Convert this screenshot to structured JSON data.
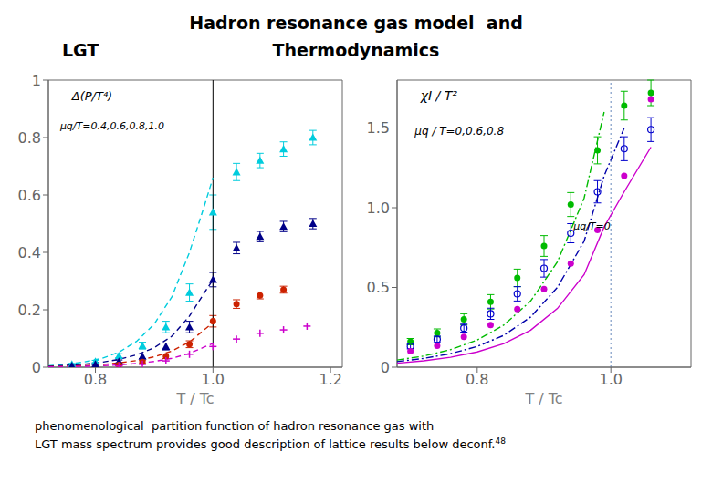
{
  "title": [
    "Hadron resonance gas model  and",
    "LGT",
    "Thermodynamics"
  ],
  "subtitle": [
    "phenomenological  partition function of hadron resonance gas with",
    "LGT mass spectrum provides good description of lattice results below deconf."
  ],
  "annotations": [
    "48"
  ],
  "chart_data": [
    {
      "type": "line",
      "x_label": "T / Tc",
      "annotations": [
        "Δ(P/T⁴)",
        "μq/T=0.4,0.6,0.8,1.0"
      ],
      "xlim": [
        0.72,
        1.22
      ],
      "ylim": [
        0,
        1.0
      ],
      "xticks": [
        0.8,
        {
          "value": 1.0,
          "label": "1.0"
        },
        1.2
      ],
      "yticks": [
        0,
        0.2,
        0.4,
        0.6,
        0.8,
        1
      ],
      "grid": false,
      "vline": {
        "x": 1.0,
        "color": "#000000",
        "line_style": "solid"
      },
      "series": [
        {
          "type": "line",
          "color": "#00ccdd",
          "line_style": "dashed",
          "x": [
            0.72,
            0.75,
            0.78,
            0.81,
            0.84,
            0.87,
            0.9,
            0.93,
            0.96,
            0.985,
            1.0
          ],
          "values": [
            0.005,
            0.01,
            0.018,
            0.03,
            0.052,
            0.09,
            0.15,
            0.245,
            0.4,
            0.56,
            0.66
          ]
        },
        {
          "type": "line",
          "color": "#000088",
          "line_style": "dashed",
          "x": [
            0.72,
            0.75,
            0.78,
            0.81,
            0.84,
            0.87,
            0.9,
            0.93,
            0.96,
            0.985,
            1.0
          ],
          "values": [
            0.003,
            0.006,
            0.01,
            0.017,
            0.027,
            0.043,
            0.068,
            0.108,
            0.178,
            0.258,
            0.305
          ]
        },
        {
          "type": "line",
          "color": "#cc2200",
          "line_style": "dashed",
          "x": [
            0.72,
            0.75,
            0.78,
            0.81,
            0.84,
            0.87,
            0.9,
            0.93,
            0.96,
            0.985,
            1.0
          ],
          "values": [
            0.002,
            0.003,
            0.005,
            0.009,
            0.015,
            0.023,
            0.036,
            0.056,
            0.088,
            0.13,
            0.155
          ]
        },
        {
          "type": "line",
          "color": "#cc00cc",
          "line_style": "dashed",
          "x": [
            0.72,
            0.75,
            0.78,
            0.81,
            0.84,
            0.87,
            0.9,
            0.93,
            0.96,
            0.985,
            1.0
          ],
          "values": [
            0.001,
            0.002,
            0.003,
            0.005,
            0.008,
            0.013,
            0.02,
            0.031,
            0.048,
            0.07,
            0.083
          ]
        },
        {
          "type": "scatter",
          "color": "#00ccdd",
          "marker": "triangle",
          "x": [
            0.76,
            0.8,
            0.84,
            0.88,
            0.92,
            0.96,
            1.0,
            1.04,
            1.08,
            1.12,
            1.17
          ],
          "values": [
            0.01,
            0.02,
            0.04,
            0.075,
            0.14,
            0.26,
            0.54,
            0.68,
            0.72,
            0.76,
            0.8
          ],
          "yerr": [
            0.003,
            0.004,
            0.007,
            0.012,
            0.02,
            0.03,
            0.06,
            0.03,
            0.025,
            0.025,
            0.025
          ]
        },
        {
          "type": "scatter",
          "color": "#000088",
          "marker": "triangle",
          "x": [
            0.76,
            0.8,
            0.84,
            0.88,
            0.92,
            0.96,
            1.0,
            1.04,
            1.08,
            1.12,
            1.17
          ],
          "values": [
            0.005,
            0.01,
            0.02,
            0.038,
            0.072,
            0.14,
            0.305,
            0.415,
            0.455,
            0.49,
            0.5
          ],
          "yerr": [
            0.002,
            0.003,
            0.005,
            0.008,
            0.012,
            0.02,
            0.025,
            0.02,
            0.018,
            0.018,
            0.018
          ]
        },
        {
          "type": "scatter",
          "color": "#cc2200",
          "marker": "circle",
          "x": [
            0.84,
            0.88,
            0.92,
            0.96,
            1.0,
            1.04,
            1.08,
            1.12
          ],
          "values": [
            0.008,
            0.018,
            0.038,
            0.08,
            0.16,
            0.22,
            0.25,
            0.27
          ],
          "yerr": [
            0.003,
            0.005,
            0.008,
            0.012,
            0.02,
            0.015,
            0.012,
            0.012
          ]
        },
        {
          "type": "scatter",
          "color": "#cc00cc",
          "marker": "plus",
          "x": [
            0.84,
            0.88,
            0.92,
            0.96,
            1.0,
            1.04,
            1.08,
            1.12,
            1.16
          ],
          "values": [
            0.004,
            0.01,
            0.022,
            0.045,
            0.072,
            0.098,
            0.118,
            0.13,
            0.143
          ]
        }
      ]
    },
    {
      "type": "line",
      "x_label": "T / Tc",
      "annotations": [
        "χI / T²",
        "μq / T=0,0.6,0.8",
        "μq/T=0"
      ],
      "xlim": [
        0.68,
        1.12
      ],
      "ylim": [
        0,
        1.8
      ],
      "xticks": [
        0.8,
        {
          "value": 1.0,
          "label": "1.0"
        }
      ],
      "yticks": [
        0,
        0.5,
        {
          "value": 1.0,
          "label": "1.0"
        },
        1.5
      ],
      "grid": false,
      "vline": {
        "x": 1.0,
        "color": "#6688bb",
        "line_style": "dotted"
      },
      "series": [
        {
          "type": "line",
          "color": "#00bb00",
          "line_style": "dashdot",
          "x": [
            0.68,
            0.72,
            0.76,
            0.8,
            0.84,
            0.88,
            0.92,
            0.96,
            0.99
          ],
          "values": [
            0.045,
            0.07,
            0.11,
            0.17,
            0.265,
            0.415,
            0.66,
            1.06,
            1.6
          ]
        },
        {
          "type": "line",
          "color": "#0000aa",
          "line_style": "dashdot",
          "x": [
            0.68,
            0.72,
            0.76,
            0.8,
            0.84,
            0.88,
            0.92,
            0.96,
            0.99,
            1.02
          ],
          "values": [
            0.035,
            0.055,
            0.085,
            0.13,
            0.2,
            0.315,
            0.5,
            0.79,
            1.2,
            1.5
          ]
        },
        {
          "type": "line",
          "color": "#cc00cc",
          "line_style": "solid",
          "x": [
            0.68,
            0.72,
            0.76,
            0.8,
            0.84,
            0.88,
            0.92,
            0.96,
            0.99,
            1.02,
            1.06
          ],
          "values": [
            0.025,
            0.04,
            0.062,
            0.096,
            0.148,
            0.232,
            0.368,
            0.58,
            0.88,
            1.1,
            1.38
          ]
        },
        {
          "type": "scatter",
          "color": "#00bb00",
          "marker": "circle",
          "x": [
            0.7,
            0.74,
            0.78,
            0.82,
            0.86,
            0.9,
            0.94,
            0.98,
            1.02,
            1.06
          ],
          "values": [
            0.16,
            0.215,
            0.3,
            0.41,
            0.56,
            0.76,
            1.02,
            1.36,
            1.64,
            1.72
          ],
          "yerr": [
            0.02,
            0.025,
            0.035,
            0.045,
            0.055,
            0.065,
            0.075,
            0.085,
            0.09,
            0.08
          ]
        },
        {
          "type": "scatter",
          "color": "#0000cc",
          "marker": "open_circle",
          "x": [
            0.7,
            0.74,
            0.78,
            0.82,
            0.86,
            0.9,
            0.94,
            0.98,
            1.02,
            1.06
          ],
          "values": [
            0.13,
            0.175,
            0.245,
            0.335,
            0.46,
            0.62,
            0.84,
            1.1,
            1.37,
            1.49
          ],
          "yerr": [
            0.015,
            0.02,
            0.025,
            0.035,
            0.045,
            0.055,
            0.06,
            0.07,
            0.075,
            0.075
          ]
        },
        {
          "type": "scatter",
          "color": "#cc00cc",
          "marker": "circle",
          "x": [
            0.7,
            0.74,
            0.78,
            0.82,
            0.86,
            0.9,
            0.94,
            0.98,
            1.02,
            1.06
          ],
          "values": [
            0.1,
            0.135,
            0.19,
            0.265,
            0.365,
            0.49,
            0.65,
            0.86,
            1.2,
            1.68
          ]
        }
      ]
    }
  ]
}
